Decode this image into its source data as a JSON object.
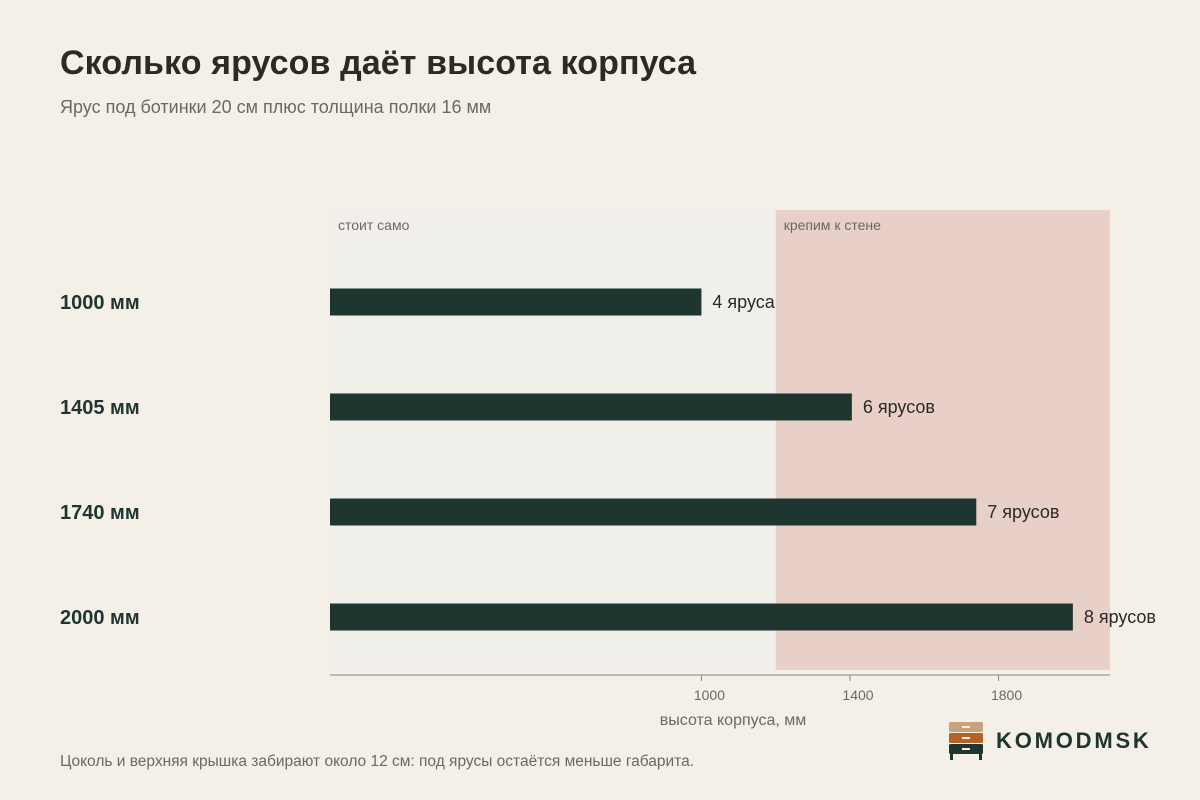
{
  "header": {
    "title": "Сколько ярусов даёт высота корпуса",
    "subtitle": "Ярус под ботинки 20 см плюс толщина полки 16 мм"
  },
  "footnote": "Цоколь и верхняя крышка забирают около 12 см: под ярусы остаётся меньше габарита.",
  "brand": {
    "name": "KOMODMSK",
    "colors": [
      "#c9a27c",
      "#b5622a",
      "#1e3530"
    ]
  },
  "chart_data": {
    "type": "bar",
    "orientation": "horizontal",
    "categories": [
      "1000 мм",
      "1405 мм",
      "1740 мм",
      "2000 мм"
    ],
    "values": [
      1000,
      1405,
      1740,
      2000
    ],
    "data_labels": [
      "4 яруса",
      "6 ярусов",
      "7 ярусов",
      "8 ярусов"
    ],
    "xlabel": "высота корпуса, мм",
    "xlim": [
      0,
      2100
    ],
    "xticks": [
      1000,
      1400,
      1800
    ],
    "zones": [
      {
        "label": "стоит само",
        "from": 0,
        "to": 1200,
        "color": "#f1efea"
      },
      {
        "label": "крепим к стене",
        "from": 1200,
        "to": 2100,
        "color": "#e8cfc7"
      }
    ],
    "bar_color": "#1e3530",
    "grid": false
  }
}
